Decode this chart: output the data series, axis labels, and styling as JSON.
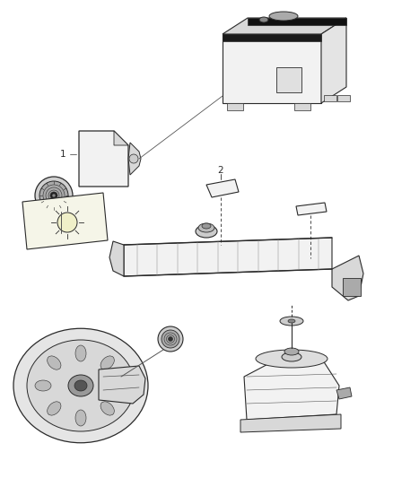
{
  "bg_color": "#ffffff",
  "lc": "#2a2a2a",
  "lc2": "#555555",
  "lc3": "#888888",
  "figsize": [
    4.38,
    5.33
  ],
  "dpi": 100,
  "fc_light": "#f2f2f2",
  "fc_mid": "#d8d8d8",
  "fc_dark": "#aaaaaa",
  "fc_darker": "#777777",
  "fc_black": "#1a1a1a"
}
